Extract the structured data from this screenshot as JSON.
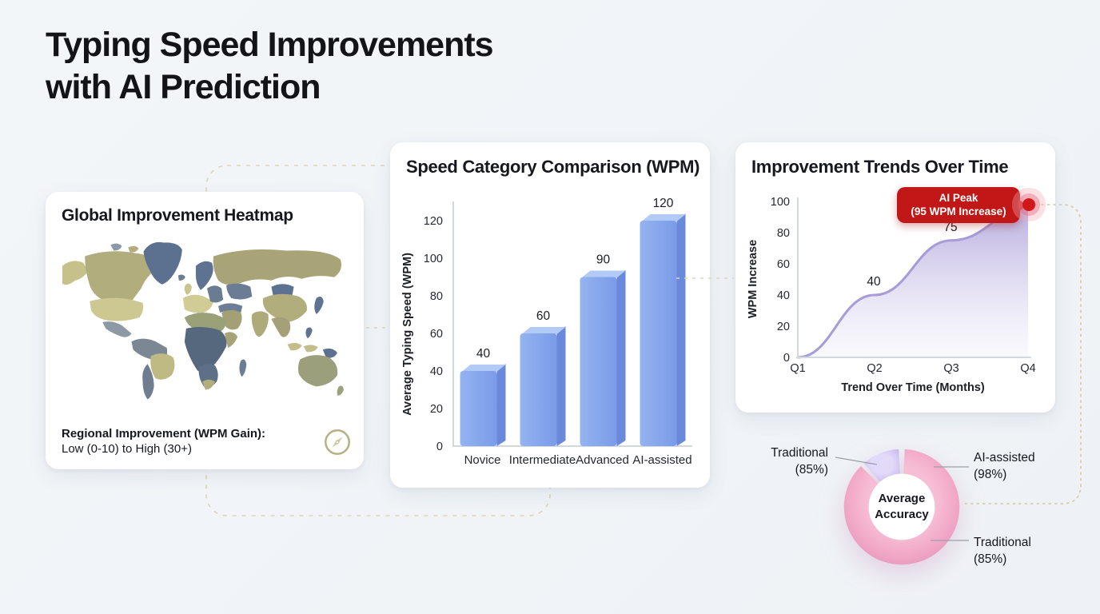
{
  "page": {
    "title_line1": "Typing Speed Improvements",
    "title_line2": "with AI Prediction"
  },
  "heatmap_card": {
    "title": "Global Improvement Heatmap",
    "caption_bold": "Regional Improvement (WPM Gain):",
    "caption_line2": "Low (0-10) to High (30+)",
    "icon": "compass-icon"
  },
  "chart_data": [
    {
      "type": "bar",
      "title": "Speed Category Comparison (WPM)",
      "xlabel": "",
      "ylabel": "Average Typing Speed (WPM)",
      "categories": [
        "Novice",
        "Intermediate",
        "Advanced",
        "AI-assisted"
      ],
      "values": [
        40,
        60,
        90,
        120
      ],
      "yticks": [
        0,
        20,
        40,
        60,
        80,
        100,
        120
      ],
      "ylim": [
        0,
        130
      ],
      "grid": false,
      "bar_color": "#7fa3ec"
    },
    {
      "type": "area",
      "title": "Improvement Trends Over Time",
      "xlabel": "Trend Over Time (Months)",
      "ylabel": "WPM Increase",
      "categories": [
        "Q1",
        "Q2",
        "Q3",
        "Q4"
      ],
      "values": [
        0,
        40,
        75,
        95
      ],
      "point_labels": [
        "",
        "40",
        "75",
        ""
      ],
      "yticks": [
        0,
        20,
        40,
        60,
        80,
        100
      ],
      "ylim": [
        0,
        100
      ],
      "grid": false,
      "line_color": "#a79bd8",
      "annotation": {
        "line1": "AI Peak",
        "line2": "(95 WPM Increase)",
        "value": 95
      }
    },
    {
      "type": "donut",
      "center_label": "Average\nAccuracy",
      "segments": [
        {
          "name": "main",
          "color": "#f0a6c6",
          "start_deg": 3,
          "end_deg": 315
        },
        {
          "name": "accent",
          "color": "#d5c9f5",
          "start_deg": 319,
          "end_deg": 357
        }
      ],
      "callouts": [
        {
          "text": "Traditional\n(85%)",
          "position": "top-left"
        },
        {
          "text": "AI-assisted\n(98%)",
          "position": "top-right"
        },
        {
          "text": "Traditional\n(85%)",
          "position": "bottom-right"
        }
      ]
    }
  ],
  "colors": {
    "background": "#f1f4f8",
    "card": "#ffffff",
    "bar_main": "#7fa3ec",
    "bar_top": "#b2caf6",
    "bar_side": "#6a89da",
    "trend_line": "#a79bd8",
    "trend_fill": "#b7ade1",
    "annotation_red": "#c21717",
    "donut_pink": "#f0a6c6",
    "donut_purple": "#d5c9f5",
    "map_olive": "#a9a478",
    "map_khaki": "#cdc791",
    "map_slate": "#5c7190",
    "dashed_decor": "#d9d3ae"
  }
}
